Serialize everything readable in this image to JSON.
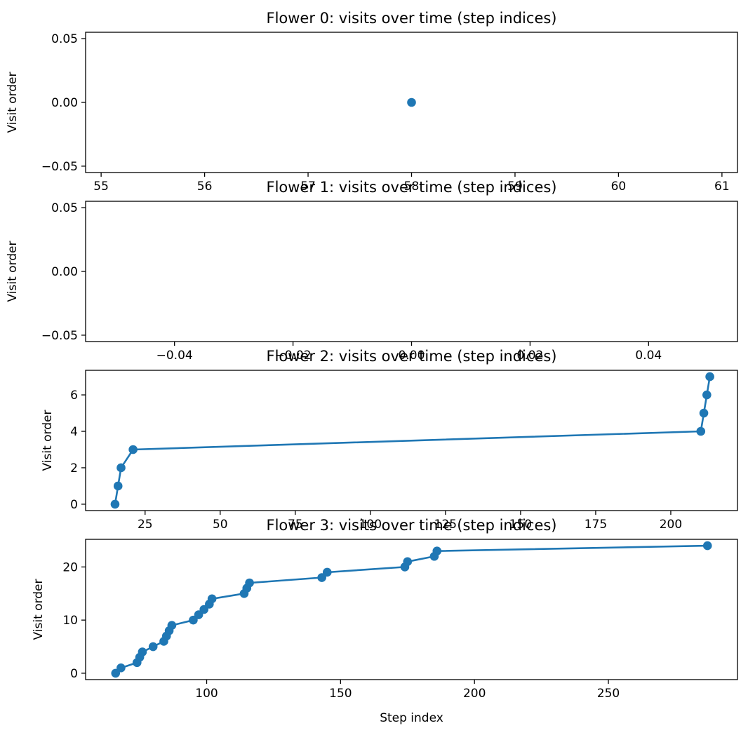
{
  "chart_data": [
    {
      "type": "line",
      "title": "Flower 0: visits over time (step indices)",
      "xlabel": "",
      "ylabel": "Visit order",
      "xlim": [
        54.85,
        61.15
      ],
      "ylim": [
        -0.055,
        0.055
      ],
      "xticks": [
        "55",
        "56",
        "57",
        "58",
        "59",
        "60",
        "61"
      ],
      "xtick_values": [
        55,
        56,
        57,
        58,
        59,
        60,
        61
      ],
      "yticks": [
        "−0.05",
        "0.00",
        "0.05"
      ],
      "ytick_values": [
        -0.05,
        0,
        0.05
      ],
      "grid": false,
      "series": [
        {
          "color": "#1f77b4",
          "marker": "circle",
          "x": [
            58
          ],
          "y": [
            0
          ]
        }
      ]
    },
    {
      "type": "line",
      "title": "Flower 1: visits over time (step indices)",
      "xlabel": "",
      "ylabel": "Visit order",
      "xlim": [
        -0.055,
        0.055
      ],
      "ylim": [
        -0.055,
        0.055
      ],
      "xticks": [
        "−0.04",
        "−0.02",
        "0.00",
        "0.02",
        "0.04"
      ],
      "xtick_values": [
        -0.04,
        -0.02,
        0,
        0.02,
        0.04
      ],
      "yticks": [
        "−0.05",
        "0.00",
        "0.05"
      ],
      "ytick_values": [
        -0.05,
        0,
        0.05
      ],
      "grid": false,
      "series": [
        {
          "color": "#1f77b4",
          "marker": "circle",
          "x": [],
          "y": []
        }
      ]
    },
    {
      "type": "line",
      "title": "Flower 2: visits over time (step indices)",
      "xlabel": "",
      "ylabel": "Visit order",
      "xlim": [
        5.2,
        222.2
      ],
      "ylim": [
        -0.35,
        7.35
      ],
      "xticks": [
        "25",
        "50",
        "75",
        "100",
        "125",
        "150",
        "175",
        "200"
      ],
      "xtick_values": [
        25,
        50,
        75,
        100,
        125,
        150,
        175,
        200
      ],
      "yticks": [
        "0",
        "2",
        "4",
        "6"
      ],
      "ytick_values": [
        0,
        2,
        4,
        6
      ],
      "grid": false,
      "series": [
        {
          "color": "#1f77b4",
          "marker": "circle",
          "x": [
            15,
            16,
            17,
            21,
            210,
            211,
            212,
            213
          ],
          "y": [
            0,
            1,
            2,
            3,
            4,
            5,
            6,
            7
          ]
        }
      ]
    },
    {
      "type": "line",
      "title": "Flower 3: visits over time (step indices)",
      "xlabel": "Step index",
      "ylabel": "Visit order",
      "xlim": [
        54.8,
        298.2
      ],
      "ylim": [
        -1.2,
        25.2
      ],
      "xticks": [
        "100",
        "150",
        "200",
        "250"
      ],
      "xtick_values": [
        100,
        150,
        200,
        250
      ],
      "yticks": [
        "0",
        "10",
        "20"
      ],
      "ytick_values": [
        0,
        10,
        20
      ],
      "grid": false,
      "series": [
        {
          "color": "#1f77b4",
          "marker": "circle",
          "x": [
            66,
            68,
            74,
            75,
            76,
            80,
            84,
            85,
            86,
            87,
            95,
            97,
            99,
            101,
            102,
            114,
            115,
            116,
            143,
            145,
            174,
            175,
            185,
            186,
            287
          ],
          "y": [
            0,
            1,
            2,
            3,
            4,
            5,
            6,
            7,
            8,
            9,
            10,
            11,
            12,
            13,
            14,
            15,
            16,
            17,
            18,
            19,
            20,
            21,
            22,
            23,
            24
          ]
        }
      ]
    }
  ]
}
